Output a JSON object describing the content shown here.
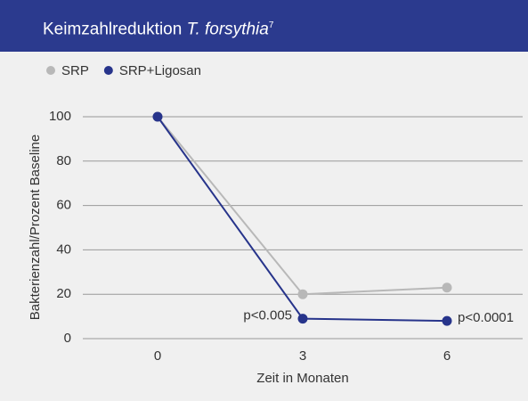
{
  "chart_data": {
    "type": "line",
    "title": {
      "text": "Keimzahlreduktion",
      "italic": "T. forsythia",
      "superscript": "7"
    },
    "categories": [
      "0",
      "3",
      "6"
    ],
    "series": [
      {
        "name": "SRP",
        "color": "#b8b8b8",
        "values": [
          100,
          20,
          23
        ]
      },
      {
        "name": "SRP+Ligosan",
        "color": "#27348b",
        "values": [
          100,
          9,
          8
        ]
      }
    ],
    "ylim": [
      0,
      100
    ],
    "yticks": [
      0,
      20,
      40,
      60,
      80,
      100
    ],
    "grid": true,
    "xlabel": "Zeit in Monaten",
    "ylabel": "Bakterienzahl/Prozent Baseline",
    "annotations": [
      {
        "text": "p<0.005"
      },
      {
        "text": "p<0.0001"
      }
    ]
  }
}
